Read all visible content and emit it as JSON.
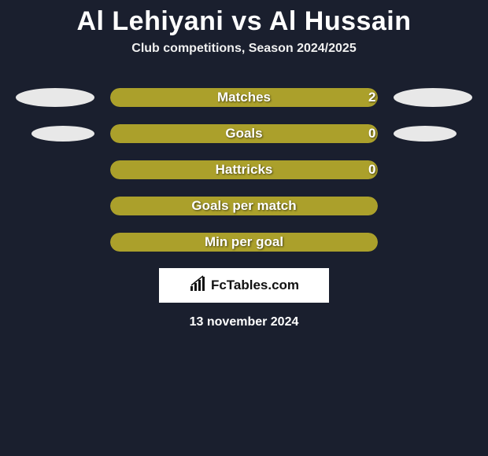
{
  "header": {
    "team1": "Al Lehiyani",
    "vs": "vs",
    "team2": "Al Hussain",
    "subtitle": "Club competitions, Season 2024/2025"
  },
  "colors": {
    "bar_main": "#aba02b",
    "background": "#1a1f2e",
    "ellipse": "#e8e8e8"
  },
  "stats": [
    {
      "label": "Matches",
      "value_right": "2",
      "fill_pct": 100,
      "show_value": true,
      "show_left_ellipse": true,
      "show_right_ellipse": true,
      "ellipse_small": false
    },
    {
      "label": "Goals",
      "value_right": "0",
      "fill_pct": 100,
      "show_value": true,
      "show_left_ellipse": true,
      "show_right_ellipse": true,
      "ellipse_small": true
    },
    {
      "label": "Hattricks",
      "value_right": "0",
      "fill_pct": 100,
      "show_value": true,
      "show_left_ellipse": false,
      "show_right_ellipse": false
    },
    {
      "label": "Goals per match",
      "value_right": "",
      "fill_pct": 100,
      "show_value": false,
      "show_left_ellipse": false,
      "show_right_ellipse": false
    },
    {
      "label": "Min per goal",
      "value_right": "",
      "fill_pct": 100,
      "show_value": false,
      "show_left_ellipse": false,
      "show_right_ellipse": false
    }
  ],
  "brand": {
    "text": "FcTables.com"
  },
  "date": "13 november 2024"
}
